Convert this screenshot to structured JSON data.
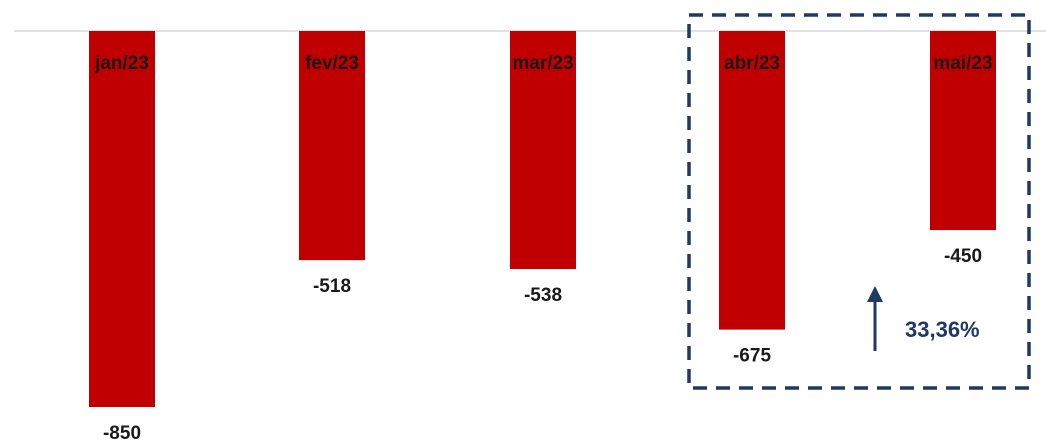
{
  "chart_data": {
    "type": "bar",
    "categories": [
      "jan/23",
      "fev/23",
      "mar/23",
      "abr/23",
      "mai/23"
    ],
    "values": [
      -850,
      -518,
      -538,
      -675,
      -450
    ],
    "value_labels": [
      "-850",
      "-518",
      "-538",
      "-675",
      "-450"
    ],
    "title": "",
    "xlabel": "",
    "ylabel": "",
    "ylim": [
      -900,
      0
    ],
    "grid": false,
    "legend": "none",
    "bar_color": "#C00000",
    "annotation": {
      "text": "33,36%",
      "from_category": "abr/23",
      "to_category": "mai/23",
      "direction": "up",
      "color": "#203864",
      "highlight_box": "dashed"
    }
  }
}
